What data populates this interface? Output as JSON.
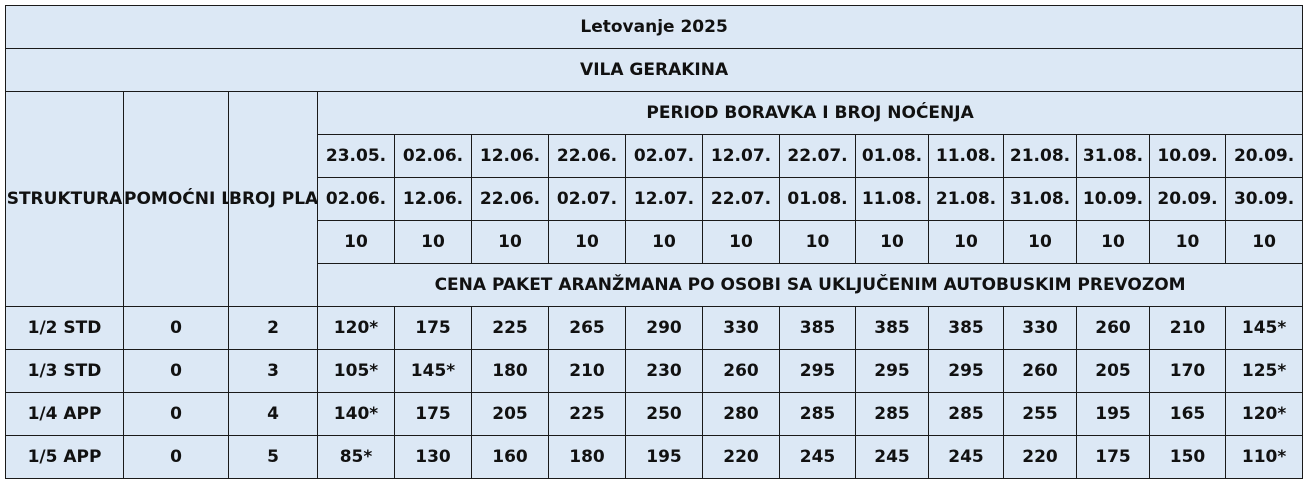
{
  "title": "Letovanje 2025",
  "subtitle": "VILA GERAKINA",
  "headers": {
    "struktura": "STRUKTURA",
    "pomocni_lezaj": "POMOĆNI LEŽAJ",
    "broj_platnih_osoba": "BROJ PLATIVIH OSOBA",
    "period": "PERIOD BORAVKA I BROJ NOĆENJA",
    "cena": "CENA PAKET ARANŽMANA PO OSOBI SA UKLJUČENIM AUTOBUSKIM PREVOZOM"
  },
  "periods": [
    {
      "from": "23.05.",
      "to": "02.06.",
      "nights": "10"
    },
    {
      "from": "02.06.",
      "to": "12.06.",
      "nights": "10"
    },
    {
      "from": "12.06.",
      "to": "22.06.",
      "nights": "10"
    },
    {
      "from": "22.06.",
      "to": "02.07.",
      "nights": "10"
    },
    {
      "from": "02.07.",
      "to": "12.07.",
      "nights": "10"
    },
    {
      "from": "12.07.",
      "to": "22.07.",
      "nights": "10"
    },
    {
      "from": "22.07.",
      "to": "01.08.",
      "nights": "10"
    },
    {
      "from": "01.08.",
      "to": "11.08.",
      "nights": "10"
    },
    {
      "from": "11.08.",
      "to": "21.08.",
      "nights": "10"
    },
    {
      "from": "21.08.",
      "to": "31.08.",
      "nights": "10"
    },
    {
      "from": "31.08.",
      "to": "10.09.",
      "nights": "10"
    },
    {
      "from": "10.09.",
      "to": "20.09.",
      "nights": "10"
    },
    {
      "from": "20.09.",
      "to": "30.09.",
      "nights": "10"
    }
  ],
  "rows": [
    {
      "struktura": "1/2 STD",
      "pomocni": "0",
      "osobe": "2",
      "prices": [
        "120*",
        "175",
        "225",
        "265",
        "290",
        "330",
        "385",
        "385",
        "385",
        "330",
        "260",
        "210",
        "145*"
      ]
    },
    {
      "struktura": "1/3 STD",
      "pomocni": "0",
      "osobe": "3",
      "prices": [
        "105*",
        "145*",
        "180",
        "210",
        "230",
        "260",
        "295",
        "295",
        "295",
        "260",
        "205",
        "170",
        "125*"
      ]
    },
    {
      "struktura": "1/4 APP",
      "pomocni": "0",
      "osobe": "4",
      "prices": [
        "140*",
        "175",
        "205",
        "225",
        "250",
        "280",
        "285",
        "285",
        "285",
        "255",
        "195",
        "165",
        "120*"
      ]
    },
    {
      "struktura": "1/5 APP",
      "pomocni": "0",
      "osobe": "5",
      "prices": [
        "85*",
        "130",
        "160",
        "180",
        "195",
        "220",
        "245",
        "245",
        "245",
        "220",
        "175",
        "150",
        "110*"
      ]
    }
  ],
  "colors": {
    "header_bg": "#dce8f5",
    "price_bg": "#fff2cc",
    "border": "#1a1a1a"
  }
}
